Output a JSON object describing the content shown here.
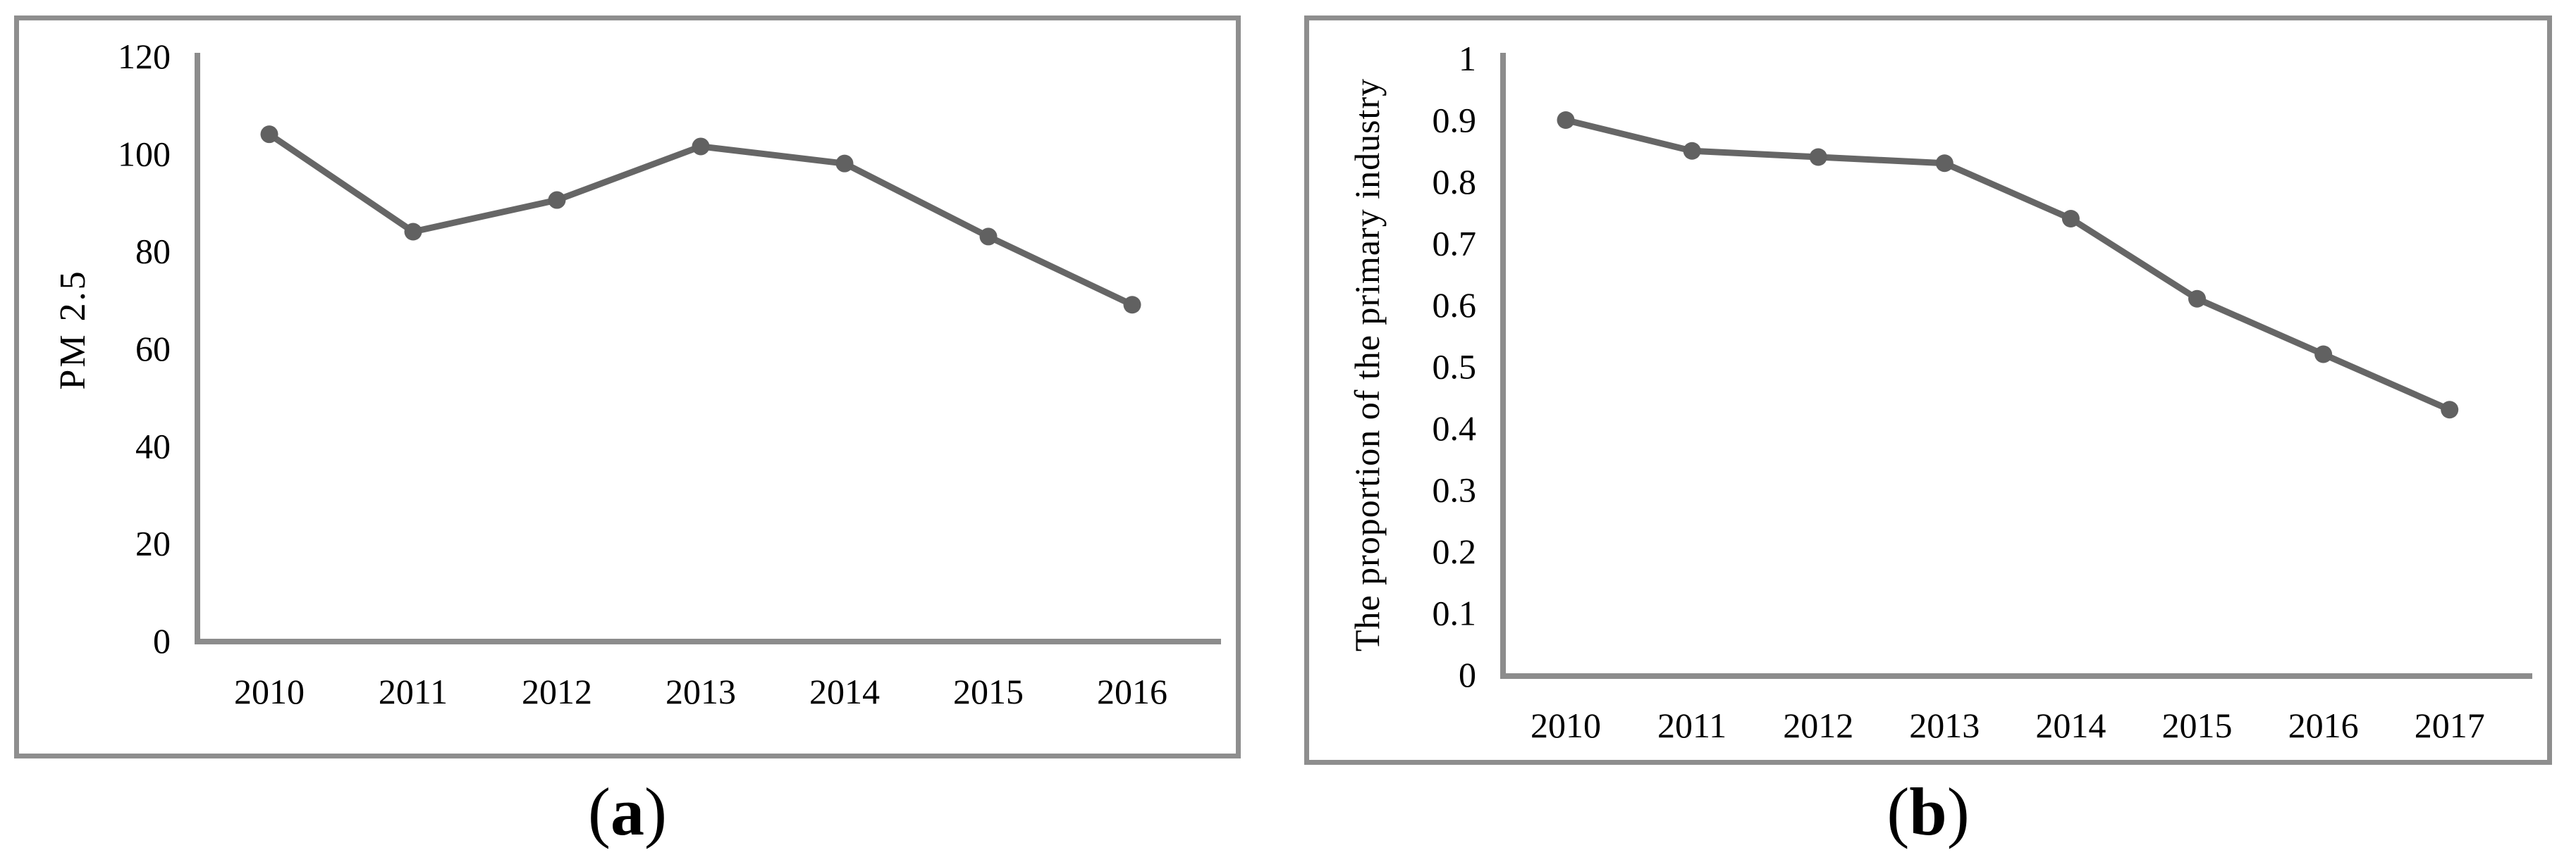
{
  "figure": {
    "panel_border_color": "#8e8e8e",
    "axis_color": "#8c8c8c",
    "line_color": "#666666",
    "marker_color": "#616161",
    "text_color": "#000000",
    "background_color": "#ffffff",
    "captions": [
      {
        "open": "(",
        "letter": "a",
        "close": ")"
      },
      {
        "open": "(",
        "letter": "b",
        "close": ")"
      }
    ]
  },
  "chart_data": [
    {
      "id": "a",
      "type": "line",
      "title": "",
      "xlabel": "",
      "ylabel": "PM 2.5",
      "categories": [
        "2010",
        "2011",
        "2012",
        "2013",
        "2014",
        "2015",
        "2016"
      ],
      "values": [
        104,
        84,
        90.5,
        101.5,
        98,
        83,
        69
      ],
      "ylim": [
        0,
        120
      ],
      "yticks": [
        0,
        20,
        40,
        60,
        80,
        100,
        120
      ],
      "ytick_labels": [
        "0",
        "20",
        "40",
        "60",
        "80",
        "100",
        "120"
      ],
      "grid": false,
      "legend": null,
      "marker": "circle"
    },
    {
      "id": "b",
      "type": "line",
      "title": "",
      "xlabel": "",
      "ylabel": "The proportion of the primary industry",
      "categories": [
        "2010",
        "2011",
        "2012",
        "2013",
        "2014",
        "2015",
        "2016",
        "2017"
      ],
      "values": [
        0.9,
        0.85,
        0.84,
        0.83,
        0.74,
        0.61,
        0.52,
        0.43
      ],
      "ylim": [
        0,
        1
      ],
      "yticks": [
        0,
        0.1,
        0.2,
        0.3,
        0.4,
        0.5,
        0.6,
        0.7,
        0.8,
        0.9,
        1
      ],
      "ytick_labels": [
        "0",
        "0.1",
        "0.2",
        "0.3",
        "0.4",
        "0.5",
        "0.6",
        "0.7",
        "0.8",
        "0.9",
        "1"
      ],
      "grid": false,
      "legend": null,
      "marker": "circle"
    }
  ]
}
